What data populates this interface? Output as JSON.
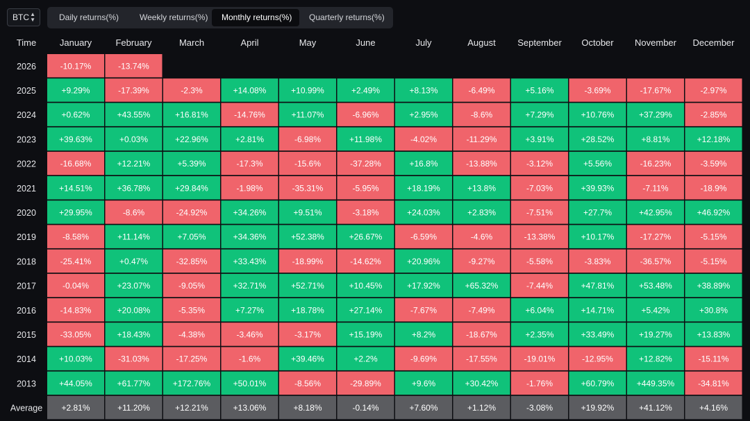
{
  "asset_select": {
    "value": "BTC",
    "chevron_icon": "chevron-up-down-icon"
  },
  "tabs": [
    {
      "label": "Daily returns(%)",
      "active": false
    },
    {
      "label": "Weekly returns(%)",
      "active": false
    },
    {
      "label": "Monthly returns(%)",
      "active": true
    },
    {
      "label": "Quarterly returns(%)",
      "active": false
    }
  ],
  "colors": {
    "positive": "#10c27a",
    "negative": "#f0646b",
    "average": "#5b5c60",
    "background": "#0d0e12"
  },
  "chart_data": {
    "type": "heatmap",
    "row_header_label": "Time",
    "columns": [
      "January",
      "February",
      "March",
      "April",
      "May",
      "June",
      "July",
      "August",
      "September",
      "October",
      "November",
      "December"
    ],
    "rows": [
      {
        "label": "2026",
        "values": [
          "-10.17%",
          "-13.74%"
        ]
      },
      {
        "label": "2025",
        "values": [
          "+9.29%",
          "-17.39%",
          "-2.3%",
          "+14.08%",
          "+10.99%",
          "+2.49%",
          "+8.13%",
          "-6.49%",
          "+5.16%",
          "-3.69%",
          "-17.67%",
          "-2.97%"
        ]
      },
      {
        "label": "2024",
        "values": [
          "+0.62%",
          "+43.55%",
          "+16.81%",
          "-14.76%",
          "+11.07%",
          "-6.96%",
          "+2.95%",
          "-8.6%",
          "+7.29%",
          "+10.76%",
          "+37.29%",
          "-2.85%"
        ]
      },
      {
        "label": "2023",
        "values": [
          "+39.63%",
          "+0.03%",
          "+22.96%",
          "+2.81%",
          "-6.98%",
          "+11.98%",
          "-4.02%",
          "-11.29%",
          "+3.91%",
          "+28.52%",
          "+8.81%",
          "+12.18%"
        ]
      },
      {
        "label": "2022",
        "values": [
          "-16.68%",
          "+12.21%",
          "+5.39%",
          "-17.3%",
          "-15.6%",
          "-37.28%",
          "+16.8%",
          "-13.88%",
          "-3.12%",
          "+5.56%",
          "-16.23%",
          "-3.59%"
        ]
      },
      {
        "label": "2021",
        "values": [
          "+14.51%",
          "+36.78%",
          "+29.84%",
          "-1.98%",
          "-35.31%",
          "-5.95%",
          "+18.19%",
          "+13.8%",
          "-7.03%",
          "+39.93%",
          "-7.11%",
          "-18.9%"
        ]
      },
      {
        "label": "2020",
        "values": [
          "+29.95%",
          "-8.6%",
          "-24.92%",
          "+34.26%",
          "+9.51%",
          "-3.18%",
          "+24.03%",
          "+2.83%",
          "-7.51%",
          "+27.7%",
          "+42.95%",
          "+46.92%"
        ]
      },
      {
        "label": "2019",
        "values": [
          "-8.58%",
          "+11.14%",
          "+7.05%",
          "+34.36%",
          "+52.38%",
          "+26.67%",
          "-6.59%",
          "-4.6%",
          "-13.38%",
          "+10.17%",
          "-17.27%",
          "-5.15%"
        ]
      },
      {
        "label": "2018",
        "values": [
          "-25.41%",
          "+0.47%",
          "-32.85%",
          "+33.43%",
          "-18.99%",
          "-14.62%",
          "+20.96%",
          "-9.27%",
          "-5.58%",
          "-3.83%",
          "-36.57%",
          "-5.15%"
        ]
      },
      {
        "label": "2017",
        "values": [
          "-0.04%",
          "+23.07%",
          "-9.05%",
          "+32.71%",
          "+52.71%",
          "+10.45%",
          "+17.92%",
          "+65.32%",
          "-7.44%",
          "+47.81%",
          "+53.48%",
          "+38.89%"
        ]
      },
      {
        "label": "2016",
        "values": [
          "-14.83%",
          "+20.08%",
          "-5.35%",
          "+7.27%",
          "+18.78%",
          "+27.14%",
          "-7.67%",
          "-7.49%",
          "+6.04%",
          "+14.71%",
          "+5.42%",
          "+30.8%"
        ]
      },
      {
        "label": "2015",
        "values": [
          "-33.05%",
          "+18.43%",
          "-4.38%",
          "-3.46%",
          "-3.17%",
          "+15.19%",
          "+8.2%",
          "-18.67%",
          "+2.35%",
          "+33.49%",
          "+19.27%",
          "+13.83%"
        ]
      },
      {
        "label": "2014",
        "values": [
          "+10.03%",
          "-31.03%",
          "-17.25%",
          "-1.6%",
          "+39.46%",
          "+2.2%",
          "-9.69%",
          "-17.55%",
          "-19.01%",
          "-12.95%",
          "+12.82%",
          "-15.11%"
        ]
      },
      {
        "label": "2013",
        "values": [
          "+44.05%",
          "+61.77%",
          "+172.76%",
          "+50.01%",
          "-8.56%",
          "-29.89%",
          "+9.6%",
          "+30.42%",
          "-1.76%",
          "+60.79%",
          "+449.35%",
          "-34.81%"
        ]
      }
    ],
    "average": {
      "label": "Average",
      "values": [
        "+2.81%",
        "+11.20%",
        "+12.21%",
        "+13.06%",
        "+8.18%",
        "-0.14%",
        "+7.60%",
        "+1.12%",
        "-3.08%",
        "+19.92%",
        "+41.12%",
        "+4.16%"
      ]
    }
  }
}
